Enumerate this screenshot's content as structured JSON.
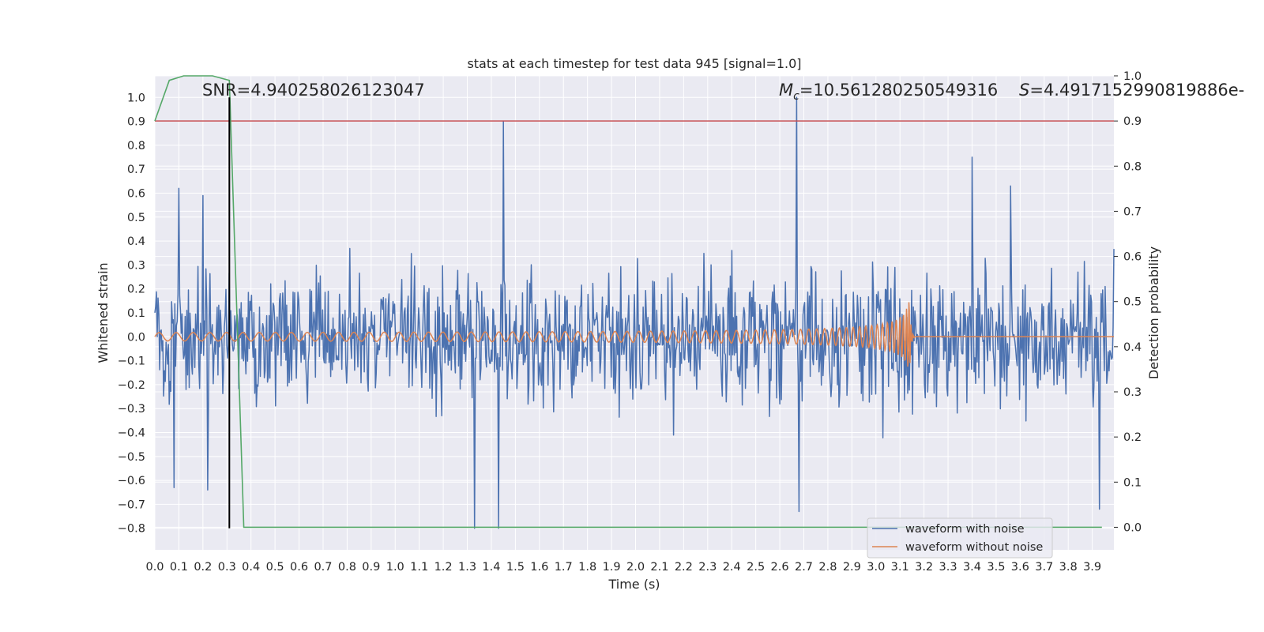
{
  "chart_data": {
    "type": "line",
    "title": "stats at each timestep for test data 945 [signal=1.0]",
    "xlabel": "Time (s)",
    "ylabel": "Whitened strain",
    "y2label": "Detection probability",
    "xlim": [
      0.0,
      3.99
    ],
    "ylim": [
      -0.89,
      1.09
    ],
    "y2lim": [
      -0.05,
      1.0
    ],
    "xticks": [
      "0.0",
      "0.1",
      "0.2",
      "0.3",
      "0.4",
      "0.5",
      "0.6",
      "0.7",
      "0.8",
      "0.9",
      "1.0",
      "1.1",
      "1.2",
      "1.3",
      "1.4",
      "1.5",
      "1.6",
      "1.7",
      "1.8",
      "1.9",
      "2.0",
      "2.1",
      "2.2",
      "2.3",
      "2.4",
      "2.5",
      "2.6",
      "2.7",
      "2.8",
      "2.9",
      "3.0",
      "3.1",
      "3.2",
      "3.3",
      "3.4",
      "3.5",
      "3.6",
      "3.7",
      "3.8",
      "3.9"
    ],
    "yticks": [
      "1.0",
      "0.9",
      "0.8",
      "0.7",
      "0.6",
      "0.5",
      "0.4",
      "0.3",
      "0.2",
      "0.1",
      "0.0",
      "−0.1",
      "−0.2",
      "−0.3",
      "−0.4",
      "−0.5",
      "−0.6",
      "−0.7",
      "−0.8"
    ],
    "y2ticks": [
      "1.0",
      "0.9",
      "0.8",
      "0.7",
      "0.6",
      "0.5",
      "0.4",
      "0.3",
      "0.2",
      "0.1",
      "0.0"
    ],
    "annotations": {
      "snr": "SNR=4.940258026123047",
      "mc_symbol": "M",
      "mc_subscript": "c",
      "mc_value": "=10.561280250549316",
      "s_symbol": "S",
      "s_value": "=4.491715299081988​6e-"
    },
    "legend": {
      "placement": "lower-right",
      "entries": [
        "waveform with noise",
        "waveform without noise"
      ]
    },
    "grid": true,
    "colors": {
      "noise": "#4c72b0",
      "clean": "#dd8452",
      "probability": "#55a868",
      "threshold": "#c44e52",
      "marker": "#000000",
      "background": "#eaeaf2",
      "grid": "#ffffff"
    },
    "series": [
      {
        "name": "waveform with noise",
        "axis": "left",
        "kind": "noisy-signal",
        "amplitude_typical": 0.25,
        "notable_peaks": [
          {
            "x": 0.1,
            "y": 0.62
          },
          {
            "x": 0.2,
            "y": 0.59
          },
          {
            "x": 1.45,
            "y": 0.9
          },
          {
            "x": 2.67,
            "y": 1.0
          },
          {
            "x": 3.4,
            "y": 0.75
          },
          {
            "x": 3.56,
            "y": 0.63
          }
        ],
        "notable_troughs": [
          {
            "x": 0.08,
            "y": -0.63
          },
          {
            "x": 0.22,
            "y": -0.64
          },
          {
            "x": 1.33,
            "y": -0.8
          },
          {
            "x": 1.43,
            "y": -0.8
          },
          {
            "x": 2.68,
            "y": -0.73
          },
          {
            "x": 3.93,
            "y": -0.72
          }
        ]
      },
      {
        "name": "waveform without noise",
        "axis": "left",
        "kind": "chirp",
        "start_amplitude": 0.01,
        "peak_amplitude": 0.17,
        "merger_time": 3.14,
        "ringdown_end": 3.16
      },
      {
        "name": "detection probability",
        "axis": "right",
        "x": [
          0.0,
          0.06,
          0.12,
          0.18,
          0.24,
          0.31,
          0.37,
          0.43,
          0.5,
          1.0,
          2.0,
          3.0,
          3.94
        ],
        "values": [
          0.9,
          0.99,
          1.0,
          1.0,
          1.0,
          0.99,
          0.0,
          0.0,
          0.0,
          0.0,
          0.0,
          0.0,
          0.0
        ]
      }
    ],
    "threshold": {
      "axis": "right",
      "value": 0.9
    },
    "marker_line": {
      "x": 0.31,
      "y_from": -0.8,
      "y_to": 1.0
    }
  }
}
